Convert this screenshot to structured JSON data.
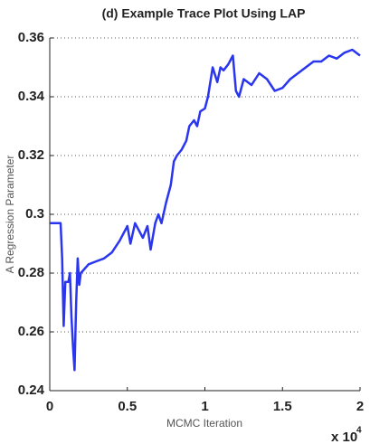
{
  "chart_data": {
    "type": "line",
    "title": "(d) Example Trace Plot Using LAP",
    "x_label": "MCMC Iteration",
    "y_label": "A Regression Parameter",
    "x_multiplier": "x 10",
    "x_multiplier_exponent": "4",
    "color": "#2a35f0",
    "grid": true,
    "xlim": [
      0,
      2
    ],
    "xticks": [
      0,
      0.5,
      1,
      1.5,
      2
    ],
    "ylim": [
      0.24,
      0.36
    ],
    "yticks": [
      0.24,
      0.26,
      0.28,
      0.3,
      0.32,
      0.34,
      0.36
    ],
    "x": [
      0,
      0.07,
      0.08,
      0.09,
      0.1,
      0.12,
      0.13,
      0.14,
      0.15,
      0.16,
      0.17,
      0.18,
      0.19,
      0.2,
      0.25,
      0.3,
      0.35,
      0.4,
      0.45,
      0.5,
      0.52,
      0.55,
      0.6,
      0.63,
      0.65,
      0.68,
      0.7,
      0.72,
      0.75,
      0.78,
      0.8,
      0.82,
      0.85,
      0.88,
      0.9,
      0.93,
      0.95,
      0.97,
      1.0,
      1.02,
      1.05,
      1.08,
      1.1,
      1.12,
      1.15,
      1.18,
      1.2,
      1.22,
      1.25,
      1.3,
      1.35,
      1.4,
      1.45,
      1.5,
      1.55,
      1.6,
      1.65,
      1.7,
      1.75,
      1.8,
      1.85,
      1.9,
      1.95,
      2.0
    ],
    "values": [
      0.297,
      0.297,
      0.285,
      0.262,
      0.277,
      0.277,
      0.28,
      0.265,
      0.255,
      0.247,
      0.27,
      0.285,
      0.276,
      0.28,
      0.283,
      0.284,
      0.285,
      0.287,
      0.291,
      0.296,
      0.29,
      0.297,
      0.292,
      0.296,
      0.288,
      0.297,
      0.3,
      0.297,
      0.304,
      0.31,
      0.318,
      0.32,
      0.322,
      0.325,
      0.33,
      0.332,
      0.33,
      0.335,
      0.336,
      0.34,
      0.35,
      0.345,
      0.35,
      0.349,
      0.351,
      0.354,
      0.342,
      0.34,
      0.346,
      0.344,
      0.348,
      0.346,
      0.342,
      0.343,
      0.346,
      0.348,
      0.35,
      0.352,
      0.352,
      0.354,
      0.353,
      0.355,
      0.356,
      0.354
    ]
  }
}
